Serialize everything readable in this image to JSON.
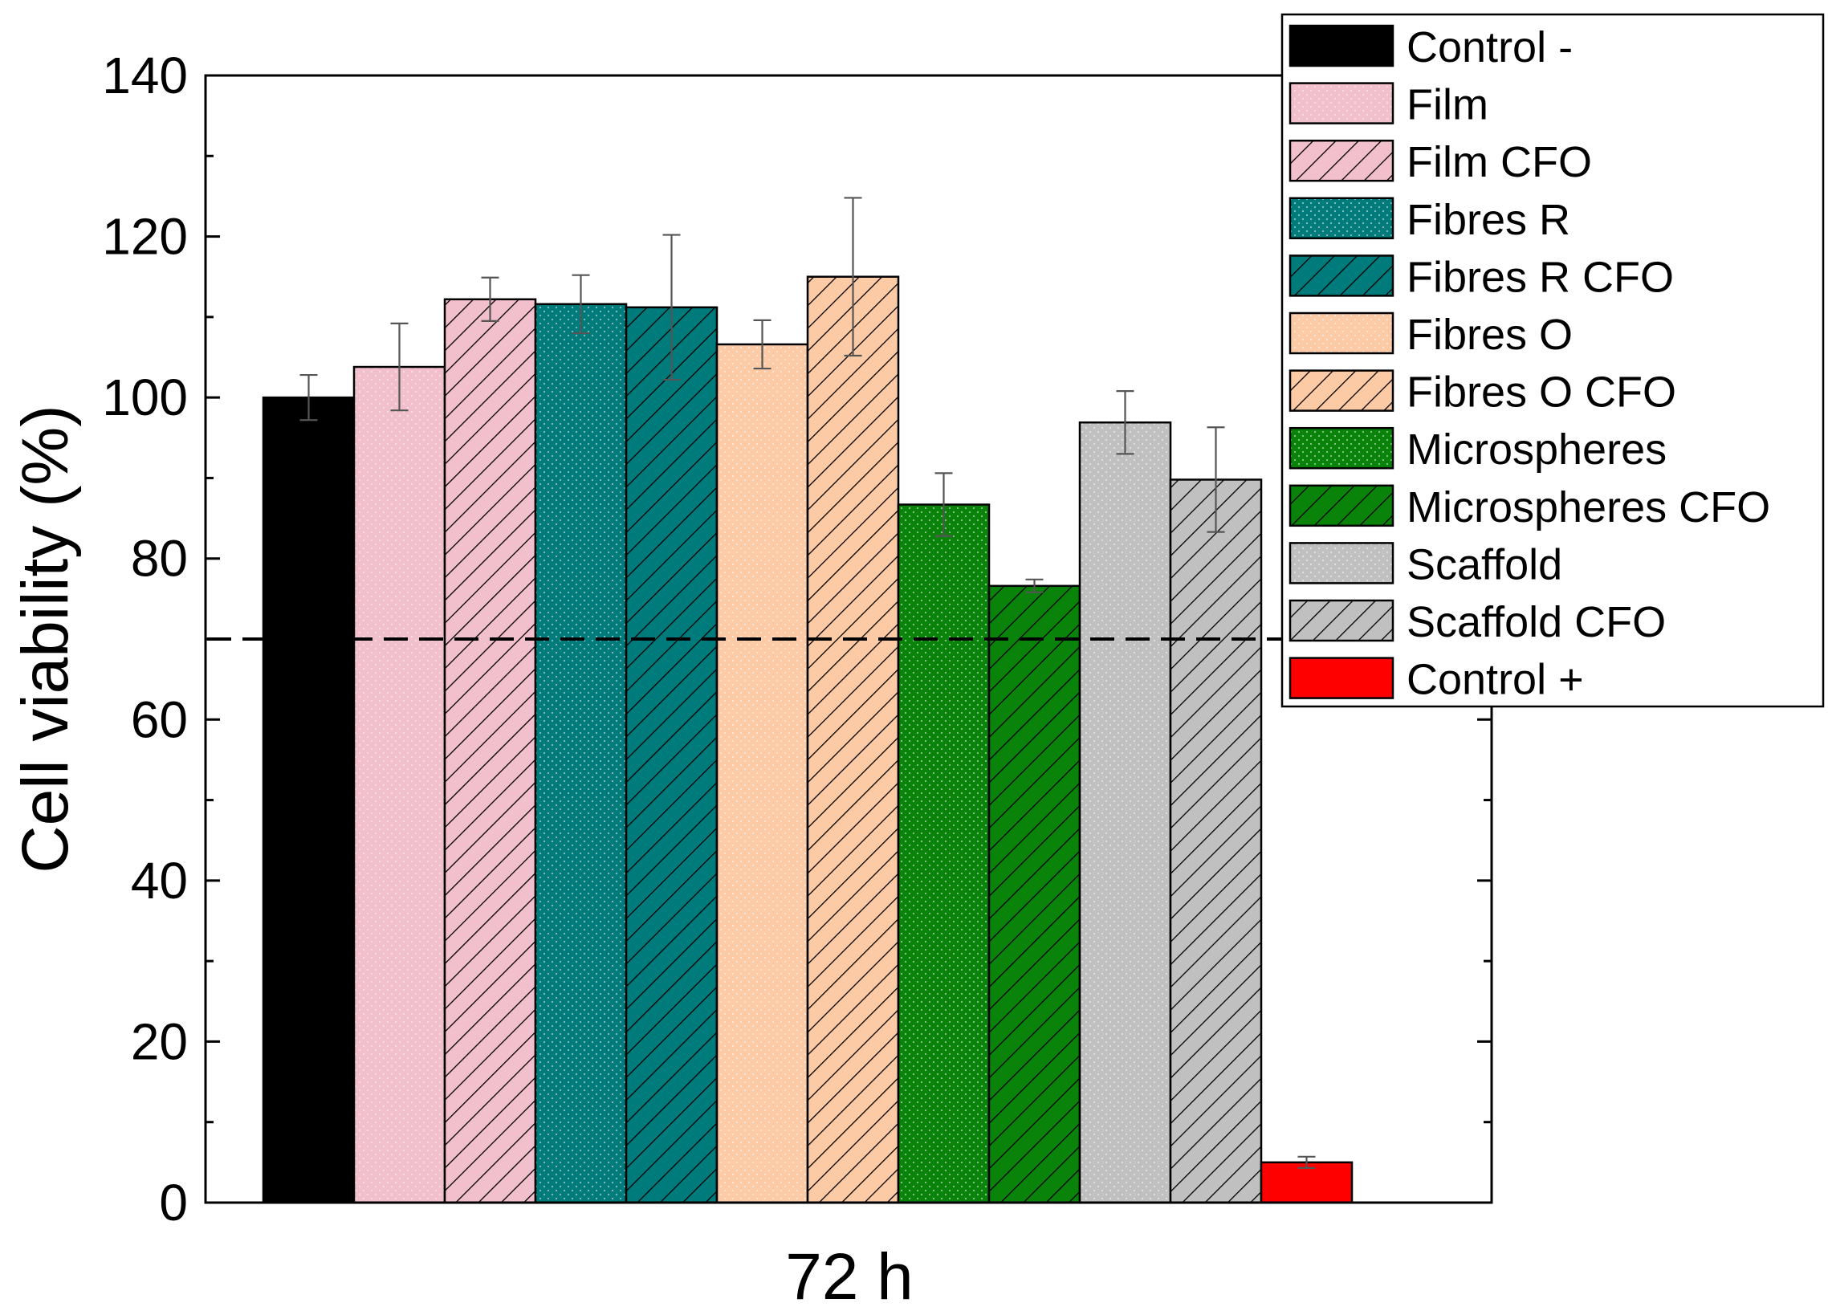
{
  "chart_data": {
    "type": "bar",
    "title": "",
    "xlabel": "72 h",
    "ylabel": "Cell viability (%)",
    "ylim": [
      0,
      140
    ],
    "yticks": [
      0,
      20,
      40,
      60,
      80,
      100,
      120,
      140
    ],
    "yticks_labels": [
      "0",
      "20",
      "40",
      "60",
      "80",
      "100",
      "120",
      "140"
    ],
    "reference_line": {
      "value": 70,
      "style": "dashed"
    },
    "legend_position": "top-right",
    "categories": [
      "72 h"
    ],
    "series": [
      {
        "name": "Control -",
        "value": 100,
        "error": 2.8,
        "color": "#000000",
        "pattern": "solid"
      },
      {
        "name": "Film",
        "value": 103.8,
        "error": 5.4,
        "color": "#f2bfcc",
        "pattern": "dots"
      },
      {
        "name": "Film CFO",
        "value": 112.2,
        "error": 2.7,
        "color": "#f2bfcc",
        "pattern": "hatch"
      },
      {
        "name": "Fibres R",
        "value": 111.6,
        "error": 3.6,
        "color": "#007b7b",
        "pattern": "dots"
      },
      {
        "name": "Fibres R CFO",
        "value": 111.2,
        "error": 9.0,
        "color": "#007b7b",
        "pattern": "hatch"
      },
      {
        "name": "Fibres O",
        "value": 106.6,
        "error": 3.0,
        "color": "#fdcaa6",
        "pattern": "dots"
      },
      {
        "name": "Fibres O CFO",
        "value": 115.0,
        "error": 9.8,
        "color": "#fdcaa6",
        "pattern": "hatch"
      },
      {
        "name": "Microspheres",
        "value": 86.7,
        "error": 3.9,
        "color": "#0a830a",
        "pattern": "dots"
      },
      {
        "name": "Microspheres CFO",
        "value": 76.6,
        "error": 0.8,
        "color": "#0a830a",
        "pattern": "hatch"
      },
      {
        "name": "Scaffold",
        "value": 96.9,
        "error": 3.9,
        "color": "#c0c0c0",
        "pattern": "dots"
      },
      {
        "name": "Scaffold CFO",
        "value": 89.8,
        "error": 6.5,
        "color": "#c0c0c0",
        "pattern": "hatch"
      },
      {
        "name": "Control +",
        "value": 5.0,
        "error": 0.7,
        "color": "#ff0000",
        "pattern": "solid"
      }
    ]
  }
}
